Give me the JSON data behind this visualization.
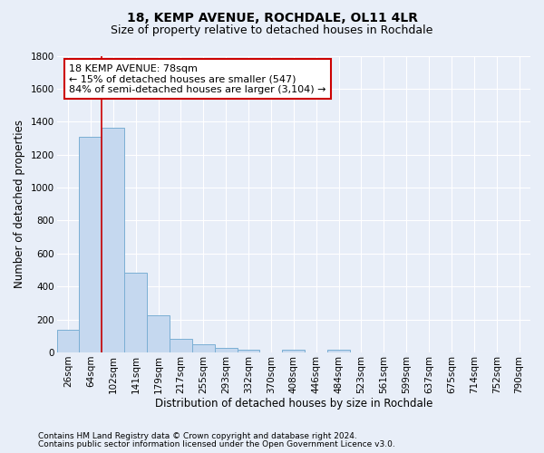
{
  "title": "18, KEMP AVENUE, ROCHDALE, OL11 4LR",
  "subtitle": "Size of property relative to detached houses in Rochdale",
  "xlabel": "Distribution of detached houses by size in Rochdale",
  "ylabel": "Number of detached properties",
  "categories": [
    "26sqm",
    "64sqm",
    "102sqm",
    "141sqm",
    "179sqm",
    "217sqm",
    "255sqm",
    "293sqm",
    "332sqm",
    "370sqm",
    "408sqm",
    "446sqm",
    "484sqm",
    "523sqm",
    "561sqm",
    "599sqm",
    "637sqm",
    "675sqm",
    "714sqm",
    "752sqm",
    "790sqm"
  ],
  "values": [
    135,
    1310,
    1365,
    485,
    225,
    80,
    48,
    28,
    18,
    0,
    18,
    0,
    18,
    0,
    0,
    0,
    0,
    0,
    0,
    0,
    0
  ],
  "bar_color": "#c5d8ef",
  "bar_edge_color": "#7bafd4",
  "property_line_x": 1.5,
  "property_line_color": "#cc0000",
  "annotation_text": "18 KEMP AVENUE: 78sqm\n← 15% of detached houses are smaller (547)\n84% of semi-detached houses are larger (3,104) →",
  "annotation_box_color": "#cc0000",
  "ylim": [
    0,
    1800
  ],
  "yticks": [
    0,
    200,
    400,
    600,
    800,
    1000,
    1200,
    1400,
    1600,
    1800
  ],
  "footnote1": "Contains HM Land Registry data © Crown copyright and database right 2024.",
  "footnote2": "Contains public sector information licensed under the Open Government Licence v3.0.",
  "bg_color": "#e8eef8",
  "plot_bg_color": "#e8eef8",
  "grid_color": "#ffffff",
  "title_fontsize": 10,
  "subtitle_fontsize": 9,
  "axis_label_fontsize": 8.5,
  "tick_fontsize": 7.5,
  "footnote_fontsize": 6.5
}
